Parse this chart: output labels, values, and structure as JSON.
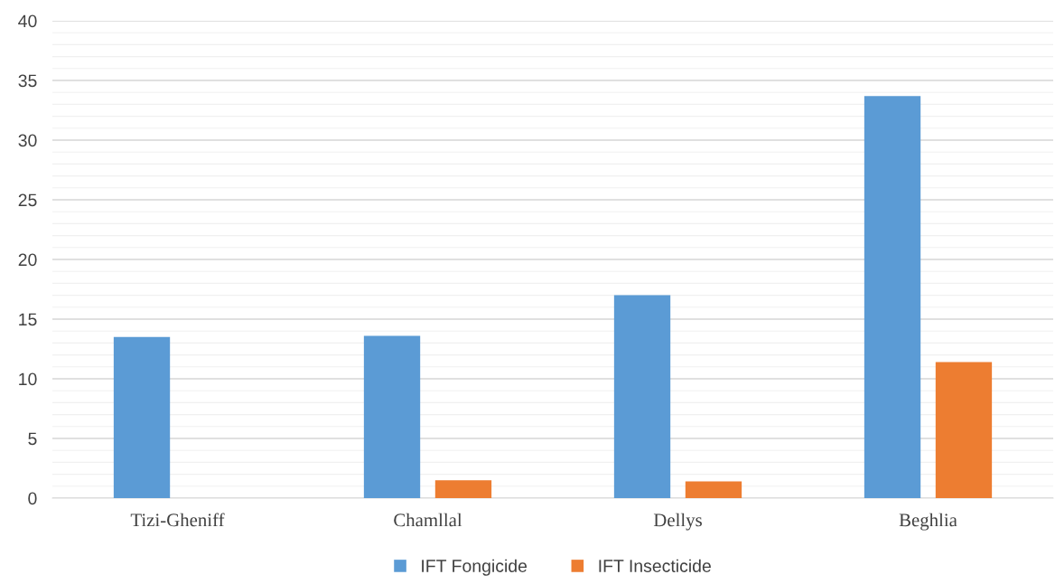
{
  "chart_data": {
    "type": "bar",
    "categories": [
      "Tizi-Gheniff",
      "Chamllal",
      "Dellys",
      "Beghlia"
    ],
    "series": [
      {
        "name": "IFT Fongicide",
        "color": "#5b9bd5",
        "values": [
          13.5,
          13.6,
          17.0,
          33.7
        ]
      },
      {
        "name": "IFT Insecticide",
        "color": "#ed7d31",
        "values": [
          0,
          1.5,
          1.4,
          11.4
        ]
      }
    ],
    "ylim": [
      0,
      40
    ],
    "yticks": [
      0,
      5,
      10,
      15,
      20,
      25,
      30,
      35,
      40
    ],
    "grid": "y",
    "legend": "bottom"
  }
}
